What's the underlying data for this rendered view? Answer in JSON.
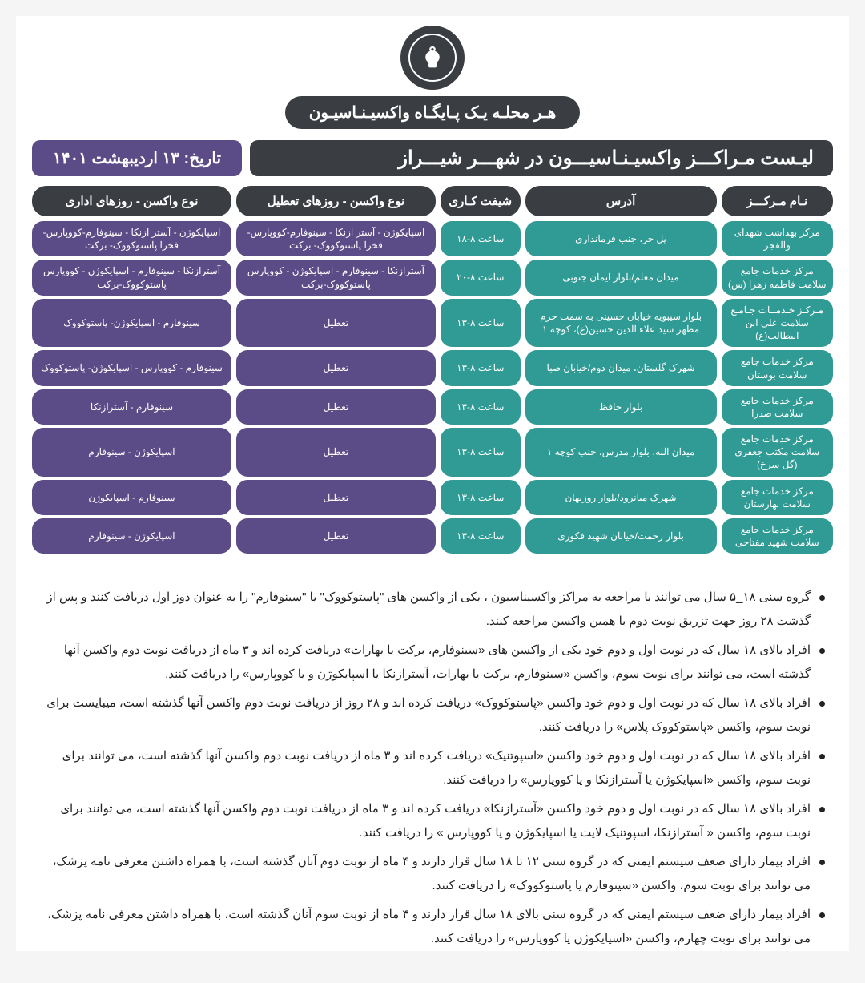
{
  "header": {
    "badge": "هـر محلـه یـک پـایگـاه واکسیـنـاسیـون",
    "title": "لیـست مـراکـــز واکسیـنـاسیـــون در شهـــر شیـــراز",
    "date": "تاریخ: ۱۳ اردیبهشت ۱۴۰۱"
  },
  "columns": {
    "name": "نـام مـرکـــز",
    "address": "آدرس",
    "shift": "شیفت کـاری",
    "vac_holiday": "نوع واکسن - روزهای تعطیل",
    "vac_workday": "نوع واکسن - روزهای اداری"
  },
  "rows": [
    {
      "name": "مرکز بهداشت شهدای والفجر",
      "address": "پل حر، جنب فرمانداری",
      "shift": "ساعت ۸-۱۸",
      "vac_holiday": "اسپایکوژن - آستر ازنکا - سینوفارم-کووپارس- فخرا پاستوکووک- برکت",
      "vac_workday": "اسپایکوژن - آستر ازنکا - سینوفارم-کووپارس- فخرا پاستوکووک- برکت"
    },
    {
      "name": "مرکز خدمات جامع سلامت فاطمه زهرا (س)",
      "address": "میدان معلم/بلوار ایمان جنوبی",
      "shift": "ساعت ۸-۲۰",
      "vac_holiday": "آسترازنکا - سینوفارم - اسپایکوژن - کووپارس پاستوکووک-برکت",
      "vac_workday": "آسترازنکا - سینوفارم - اسپایکوژن - کووپارس پاستوکووک-برکت"
    },
    {
      "name": "مـرکـز خـدمــات جـامـع سلامت علی ابن ابیطالب(ع)",
      "address": "بلوار سیبویه خیابان حسینی به سمت حرم مطهر سید علاء الدین حسین(ع)، کوچه ۱",
      "shift": "ساعت ۸-۱۳",
      "vac_holiday": "تعطیل",
      "vac_workday": "سینوفارم - اسپایکوژن- پاستوکووک"
    },
    {
      "name": "مرکز خدمات جامع سلامت بوستان",
      "address": "شهرک گلستان، میدان دوم/خیابان صبا",
      "shift": "ساعت ۸-۱۳",
      "vac_holiday": "تعطیل",
      "vac_workday": "سینوفارم - کووپارس - اسپایکوژن- پاستوکووک"
    },
    {
      "name": "مرکز خدمات جامع سلامت صدرا",
      "address": "بلوار حافظ",
      "shift": "ساعت ۸-۱۳",
      "vac_holiday": "تعطیل",
      "vac_workday": "سینوفارم - آسترازنکا"
    },
    {
      "name": "مرکز خدمات جامع سلامت مکتب جعفری (گل سرخ)",
      "address": "میدان الله، بلوار مدرس، جنب کوچه ۱",
      "shift": "ساعت ۸-۱۳",
      "vac_holiday": "تعطیل",
      "vac_workday": "اسپایکوژن - سینوفارم"
    },
    {
      "name": "مرکز خدمات جامع سلامت بهارستان",
      "address": "شهرک میانرود/بلوار روزبهان",
      "shift": "ساعت ۸-۱۳",
      "vac_holiday": "تعطیل",
      "vac_workday": "سینوفارم - اسپایکوژن"
    },
    {
      "name": "مرکز خدمات جامع سلامت شهید مفتاحی",
      "address": "بلوار رحمت/خیابان شهید فکوری",
      "shift": "ساعت ۸-۱۳",
      "vac_holiday": "تعطیل",
      "vac_workday": "اسپایکوژن - سینوفارم"
    }
  ],
  "notes": [
    "گروه سنی ۱۸_۵ سال می توانند با مراجعه به مراکز واکسیناسیون ، یکی از واکسن های \"پاستوکووک\" یا \"سینوفارم\" را به عنوان دوز اول دریافت کنند و پس از گذشت ۲۸ روز جهت تزریق نوبت دوم با همین واکسن مراجعه کنند.",
    "افراد بالای ۱۸ سال که در نوبت اول و دوم خود یکی از واکسن های «سینوفارم، برکت یا بهارات» دریافت کرده اند و ۳ ماه از دریافت نوبت دوم واکسن آنها گذشته است، می توانند برای نوبت سوم، واکسن «سینوفارم، برکت یا بهارات، آسترازنکا یا اسپایکوژن و یا کووپارس» را دریافت کنند.",
    "افراد بالای ۱۸ سال که در نوبت اول و دوم خود واکسن «پاستوکووک» دریافت کرده اند و ۲۸ روز از دریافت نوبت دوم واکسن آنها گذشته است، میبایست برای نوبت سوم، واکسن «پاستوکووک پلاس» را دریافت کنند.",
    "افراد بالای ۱۸ سال که در نوبت اول و دوم خود واکسن «اسپوتنیک» دریافت کرده اند و ۳ ماه از دریافت نوبت دوم واکسن آنها گذشته است، می توانند برای نوبت سوم، واکسن «اسپایکوژن یا آسترازنکا و یا کووپارس» را دریافت کنند.",
    "افراد بالای ۱۸ سال که در نوبت اول و دوم خود واکسن «آسترازنکا» دریافت کرده اند و ۳ ماه از دریافت نوبت دوم واکسن آنها گذشته است، می توانند برای نوبت سوم، واکسن « آسترازنکا، اسپوتنیک لایت یا اسپایکوژن و یا کووپارس » را دریافت کنند.",
    "افراد بیمار دارای ضعف سیستم ایمنی که در گروه سنی ۱۲ تا ۱۸ سال قرار دارند و ۴ ماه از نوبت دوم آنان گذشته است، با همراه داشتن معرفی نامه پزشک، می توانند برای نوبت سوم، واکسن «سینوفارم یا پاستوکووک» را دریافت کنند.",
    "افراد بیمار دارای ضعف سیستم ایمنی که در گروه سنی بالای ۱۸ سال قرار دارند و ۴ ماه از نوبت سوم آنان گذشته است، با همراه داشتن معرفی نامه پزشک، می توانند برای نوبت چهارم، واکسن «اسپایکوژن یا کووپارس» را دریافت کنند."
  ],
  "colors": {
    "dark": "#3a3d42",
    "teal": "#2f9b94",
    "purple": "#5b4b86"
  }
}
